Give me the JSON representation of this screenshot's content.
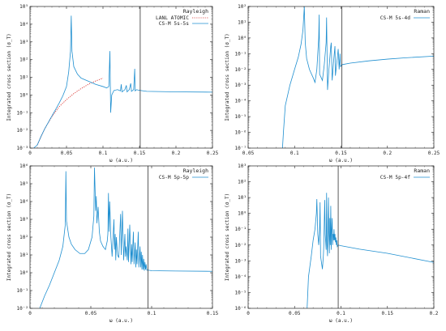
{
  "colors": {
    "model": "#1f8fd0",
    "lanl": "#d9302c",
    "axis": "#222222",
    "threshold": "#333333"
  },
  "chart_data": [
    {
      "type": "line",
      "scale": "log-y",
      "title": "Rayleigh",
      "xlabel": "ω (a.u.)",
      "ylabel": "Integrated cross section (σ_T)",
      "xlim": [
        0,
        0.25
      ],
      "ylim_exp": [
        -3,
        5
      ],
      "xticks": [
        "0",
        "0.05",
        "0.1",
        "0.15",
        "0.2",
        "0.25"
      ],
      "xtick_values": [
        0,
        0.05,
        0.1,
        0.15,
        0.2,
        0.25
      ],
      "threshold_x": 0.151,
      "legend": [
        "LANL ATOMIC",
        "CS-M 5s-5s"
      ],
      "series": [
        {
          "name": "LANL ATOMIC",
          "style": "dotted",
          "color": "#d9302c",
          "points": [
            [
              0.01,
              0.0015
            ],
            [
              0.02,
              0.012
            ],
            [
              0.03,
              0.06
            ],
            [
              0.04,
              0.22
            ],
            [
              0.05,
              0.55
            ],
            [
              0.06,
              1.2
            ],
            [
              0.07,
              2.3
            ],
            [
              0.08,
              4.0
            ],
            [
              0.09,
              6.2
            ],
            [
              0.1,
              9.0
            ]
          ]
        },
        {
          "name": "CS-M 5s-5s",
          "style": "solid",
          "color": "#1f8fd0",
          "points": [
            [
              0.005,
              0.001
            ],
            [
              0.01,
              0.0015
            ],
            [
              0.015,
              0.0045
            ],
            [
              0.02,
              0.012
            ],
            [
              0.025,
              0.028
            ],
            [
              0.03,
              0.065
            ],
            [
              0.035,
              0.15
            ],
            [
              0.04,
              0.35
            ],
            [
              0.045,
              0.9
            ],
            [
              0.05,
              3.0
            ],
            [
              0.053,
              20
            ],
            [
              0.0555,
              300
            ],
            [
              0.0565,
              30000
            ],
            [
              0.0575,
              300
            ],
            [
              0.06,
              40
            ],
            [
              0.065,
              15
            ],
            [
              0.07,
              9
            ],
            [
              0.08,
              6
            ],
            [
              0.09,
              4
            ],
            [
              0.1,
              3
            ],
            [
              0.105,
              2.5
            ],
            [
              0.108,
              3
            ],
            [
              0.1095,
              300
            ],
            [
              0.1105,
              0.1
            ],
            [
              0.112,
              1
            ],
            [
              0.115,
              1.8
            ],
            [
              0.12,
              2
            ],
            [
              0.124,
              1.7
            ],
            [
              0.125,
              4
            ],
            [
              0.126,
              1.5
            ],
            [
              0.13,
              2
            ],
            [
              0.132,
              3.5
            ],
            [
              0.133,
              1.5
            ],
            [
              0.136,
              2
            ],
            [
              0.138,
              4.5
            ],
            [
              0.139,
              1.6
            ],
            [
              0.142,
              2
            ],
            [
              0.1435,
              30
            ],
            [
              0.144,
              1.7
            ],
            [
              0.146,
              2
            ],
            [
              0.148,
              1.9
            ],
            [
              0.151,
              1.8
            ],
            [
              0.16,
              1.6
            ],
            [
              0.2,
              1.5
            ],
            [
              0.25,
              1.45
            ]
          ]
        }
      ]
    },
    {
      "type": "line",
      "scale": "log-y",
      "title": "Raman",
      "xlabel": "ω (a.u.)",
      "ylabel": "Integrated cross section (σ_T)",
      "xlim": [
        0.05,
        0.25
      ],
      "ylim_exp": [
        -7,
        2
      ],
      "xticks": [
        "0.05",
        "0.1",
        "0.15",
        "0.2",
        "0.25"
      ],
      "xtick_values": [
        0.05,
        0.1,
        0.15,
        0.2,
        0.25
      ],
      "threshold_x": 0.151,
      "legend": [
        "CS-M 5s-4d"
      ],
      "series": [
        {
          "name": "CS-M 5s-4d",
          "style": "solid",
          "color": "#1f8fd0",
          "points": [
            [
              0.087,
              1e-07
            ],
            [
              0.088,
              1e-06
            ],
            [
              0.09,
              5e-05
            ],
            [
              0.095,
              0.001
            ],
            [
              0.1,
              0.01
            ],
            [
              0.104,
              0.06
            ],
            [
              0.107,
              0.4
            ],
            [
              0.109,
              3
            ],
            [
              0.1105,
              100
            ],
            [
              0.1115,
              0.5
            ],
            [
              0.113,
              0.05
            ],
            [
              0.116,
              0.01
            ],
            [
              0.12,
              0.003
            ],
            [
              0.122,
              0.0015
            ],
            [
              0.124,
              0.01
            ],
            [
              0.126,
              1
            ],
            [
              0.1265,
              30
            ],
            [
              0.127,
              0.005
            ],
            [
              0.13,
              0.002
            ],
            [
              0.132,
              0.02
            ],
            [
              0.134,
              0.5
            ],
            [
              0.1345,
              20
            ],
            [
              0.1355,
              0.0005
            ],
            [
              0.137,
              0.01
            ],
            [
              0.139,
              0.3
            ],
            [
              0.1395,
              0.5
            ],
            [
              0.1405,
              0.002
            ],
            [
              0.142,
              0.03
            ],
            [
              0.1435,
              0.3
            ],
            [
              0.144,
              0.004
            ],
            [
              0.146,
              0.05
            ],
            [
              0.147,
              0.2
            ],
            [
              0.148,
              0.01
            ],
            [
              0.149,
              0.1
            ],
            [
              0.1495,
              0.015
            ],
            [
              0.151,
              0.02
            ],
            [
              0.16,
              0.025
            ],
            [
              0.18,
              0.035
            ],
            [
              0.2,
              0.045
            ],
            [
              0.22,
              0.055
            ],
            [
              0.25,
              0.07
            ]
          ]
        }
      ]
    },
    {
      "type": "line",
      "scale": "log-y",
      "title": "Rayleigh",
      "xlabel": "ω (a.u.)",
      "ylabel": "Integrated cross section (σ_T)",
      "xlim": [
        0,
        0.15
      ],
      "ylim_exp": [
        -2,
        6
      ],
      "xticks": [
        "0",
        "0.05",
        "0.1",
        "0.15"
      ],
      "xtick_values": [
        0,
        0.05,
        0.1,
        0.15
      ],
      "threshold_x": 0.097,
      "legend": [
        "CS-M 5p-5p"
      ],
      "series": [
        {
          "name": "CS-M 5p-5p",
          "style": "solid",
          "color": "#1f8fd0",
          "points": [
            [
              0.008,
              0.01
            ],
            [
              0.012,
              0.05
            ],
            [
              0.016,
              0.2
            ],
            [
              0.02,
              1
            ],
            [
              0.024,
              5
            ],
            [
              0.027,
              30
            ],
            [
              0.029,
              500
            ],
            [
              0.0295,
              500000
            ],
            [
              0.03,
              800
            ],
            [
              0.032,
              100
            ],
            [
              0.034,
              40
            ],
            [
              0.037,
              20
            ],
            [
              0.041,
              12
            ],
            [
              0.045,
              12
            ],
            [
              0.048,
              20
            ],
            [
              0.051,
              100
            ],
            [
              0.0525,
              1500
            ],
            [
              0.053,
              800000
            ],
            [
              0.054,
              3000
            ],
            [
              0.0545,
              20000
            ],
            [
              0.055,
              600
            ],
            [
              0.056,
              5000
            ],
            [
              0.057,
              200
            ],
            [
              0.058,
              60
            ],
            [
              0.06,
              30
            ],
            [
              0.062,
              20
            ],
            [
              0.0635,
              60
            ],
            [
              0.064,
              150
            ],
            [
              0.0645,
              30000
            ],
            [
              0.065,
              200
            ],
            [
              0.0655,
              10000
            ],
            [
              0.066,
              1200
            ],
            [
              0.0665,
              100
            ],
            [
              0.0675,
              8
            ],
            [
              0.068,
              40
            ],
            [
              0.069,
              1000
            ],
            [
              0.0695,
              20
            ],
            [
              0.07,
              150
            ],
            [
              0.0705,
              5
            ],
            [
              0.071,
              100
            ],
            [
              0.072,
              10
            ],
            [
              0.073,
              7
            ],
            [
              0.0745,
              2000
            ],
            [
              0.075,
              10
            ],
            [
              0.076,
              3000
            ],
            [
              0.077,
              5
            ],
            [
              0.078,
              150
            ],
            [
              0.0785,
              8
            ],
            [
              0.079,
              30
            ],
            [
              0.08,
              5
            ],
            [
              0.0805,
              300
            ],
            [
              0.081,
              4
            ],
            [
              0.082,
              500
            ],
            [
              0.083,
              3
            ],
            [
              0.0835,
              40
            ],
            [
              0.084,
              4
            ],
            [
              0.085,
              200
            ],
            [
              0.0855,
              3
            ],
            [
              0.0865,
              50
            ],
            [
              0.087,
              2
            ],
            [
              0.0875,
              20
            ],
            [
              0.088,
              3
            ],
            [
              0.089,
              200
            ],
            [
              0.0895,
              2
            ],
            [
              0.0905,
              30
            ],
            [
              0.091,
              2
            ],
            [
              0.0915,
              15
            ],
            [
              0.092,
              1.5
            ],
            [
              0.0925,
              10
            ],
            [
              0.093,
              1.5
            ],
            [
              0.0935,
              6
            ],
            [
              0.094,
              1.3
            ],
            [
              0.0945,
              4
            ],
            [
              0.095,
              1.5
            ],
            [
              0.0955,
              3
            ],
            [
              0.096,
              1.4
            ],
            [
              0.097,
              1.4
            ],
            [
              0.1,
              1.3
            ],
            [
              0.12,
              1.25
            ],
            [
              0.15,
              1.2
            ]
          ]
        }
      ]
    },
    {
      "type": "line",
      "scale": "log-y",
      "title": "Raman",
      "xlabel": "ω (a.u.)",
      "ylabel": "Integrated cross section (σ_T)",
      "xlim": [
        0,
        0.2
      ],
      "ylim_exp": [
        -6,
        3
      ],
      "xticks": [
        "0",
        "0.05",
        "0.1",
        "0.15",
        "0.2"
      ],
      "xtick_values": [
        0,
        0.05,
        0.1,
        0.15,
        0.2
      ],
      "threshold_x": 0.097,
      "legend": [
        "CS-M 5p-4f"
      ],
      "series": [
        {
          "name": "CS-M 5p-4f",
          "style": "solid",
          "color": "#1f8fd0",
          "points": [
            [
              0.0635,
              1e-06
            ],
            [
              0.065,
              0.0001
            ],
            [
              0.068,
              0.002
            ],
            [
              0.07,
              0.02
            ],
            [
              0.072,
              0.1
            ],
            [
              0.0735,
              1
            ],
            [
              0.074,
              8
            ],
            [
              0.075,
              0.05
            ],
            [
              0.076,
              0.01
            ],
            [
              0.077,
              0.1
            ],
            [
              0.0775,
              5
            ],
            [
              0.078,
              0.002
            ],
            [
              0.08,
              0.0003
            ],
            [
              0.081,
              0.002
            ],
            [
              0.0815,
              0.01
            ],
            [
              0.082,
              0.3
            ],
            [
              0.0825,
              7
            ],
            [
              0.083,
              0.05
            ],
            [
              0.084,
              0.005
            ],
            [
              0.0845,
              20
            ],
            [
              0.085,
              0.01
            ],
            [
              0.0855,
              0.002
            ],
            [
              0.086,
              0.1
            ],
            [
              0.0865,
              10
            ],
            [
              0.087,
              0.05
            ],
            [
              0.0875,
              0.003
            ],
            [
              0.088,
              0.5
            ],
            [
              0.0885,
              0.01
            ],
            [
              0.089,
              3
            ],
            [
              0.0895,
              0.005
            ],
            [
              0.09,
              0.1
            ],
            [
              0.0905,
              0.5
            ],
            [
              0.091,
              0.01
            ],
            [
              0.0915,
              0.05
            ],
            [
              0.092,
              0.02
            ],
            [
              0.0925,
              0.1
            ],
            [
              0.093,
              0.02
            ],
            [
              0.0935,
              0.05
            ],
            [
              0.094,
              0.015
            ],
            [
              0.0945,
              0.03
            ],
            [
              0.095,
              0.01
            ],
            [
              0.0955,
              0.02
            ],
            [
              0.096,
              0.008
            ],
            [
              0.097,
              0.01
            ],
            [
              0.1,
              0.009
            ],
            [
              0.12,
              0.0055
            ],
            [
              0.15,
              0.003
            ],
            [
              0.2,
              0.0008
            ]
          ]
        }
      ]
    }
  ]
}
